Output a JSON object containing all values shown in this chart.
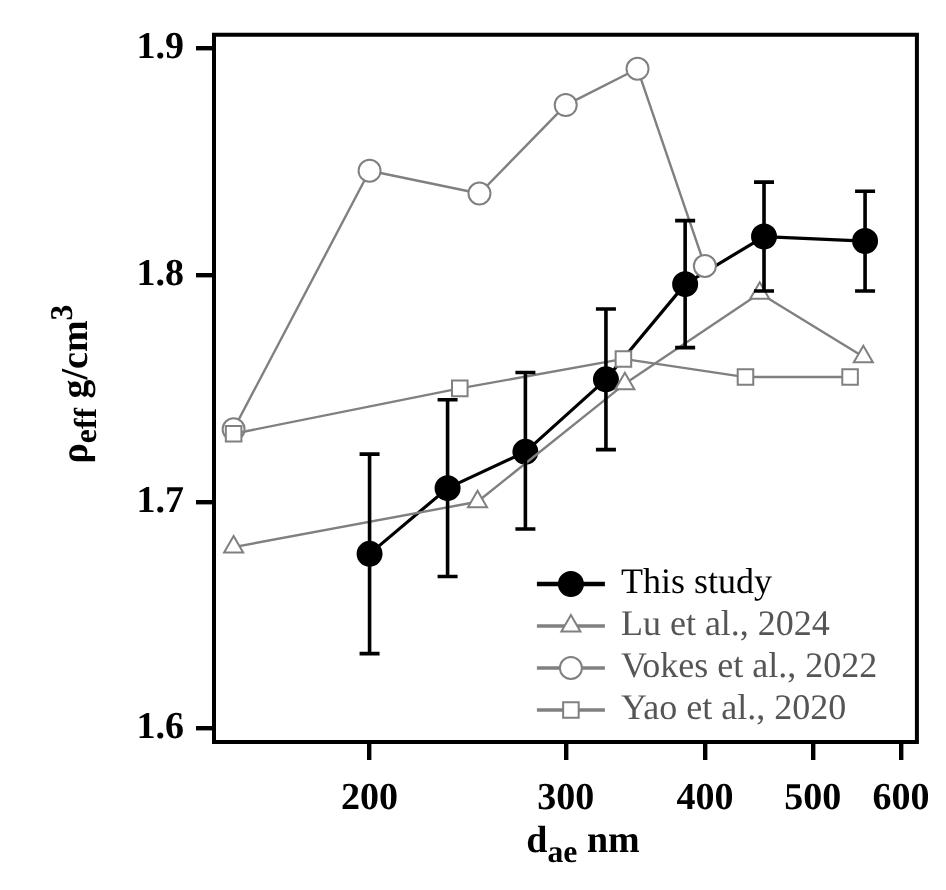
{
  "chart_data": {
    "type": "line",
    "xlabel": "d$_{ae}$ nm",
    "ylabel": "ρ$_{eff}$ g/cm$^{3}$",
    "log": "x",
    "xlim": [
      145,
      620
    ],
    "xticks": [
      200,
      300,
      400,
      500,
      600
    ],
    "ylim": [
      1.594,
      1.906
    ],
    "yticks": [
      1.6,
      1.7,
      1.8,
      1.9
    ],
    "grid": false,
    "legend": "bottom right",
    "line_style": "solid",
    "series": [
      {
        "name": "This study",
        "color": "#000000",
        "marker": "circle",
        "x": [
          200,
          235,
          276,
          326,
          384,
          452,
          557
        ],
        "values": [
          1.677,
          1.706,
          1.722,
          1.754,
          1.796,
          1.817,
          1.815
        ],
        "errors": [
          [
            1.633,
            1.721
          ],
          [
            1.667,
            1.745
          ],
          [
            1.688,
            1.757
          ],
          [
            1.723,
            1.785
          ],
          [
            1.768,
            1.824
          ],
          [
            1.793,
            1.841
          ],
          [
            1.793,
            1.837
          ]
        ]
      },
      {
        "name": "Lu et al., 2024",
        "color": "#808080",
        "marker": "triangle",
        "x": [
          151,
          250,
          339,
          448,
          555
        ],
        "values": [
          1.68,
          1.7,
          1.752,
          1.792,
          1.764
        ]
      },
      {
        "name": "Vokes et al., 2022",
        "color": "#808080",
        "marker": "circle",
        "x": [
          151,
          200,
          251,
          300,
          348,
          400
        ],
        "values": [
          1.732,
          1.846,
          1.836,
          1.875,
          1.891,
          1.804
        ]
      },
      {
        "name": "Yao et al., 2020",
        "color": "#808080",
        "marker": "square",
        "x": [
          151,
          241,
          338,
          435,
          540
        ],
        "values": [
          1.73,
          1.75,
          1.763,
          1.755,
          1.755
        ]
      }
    ]
  }
}
